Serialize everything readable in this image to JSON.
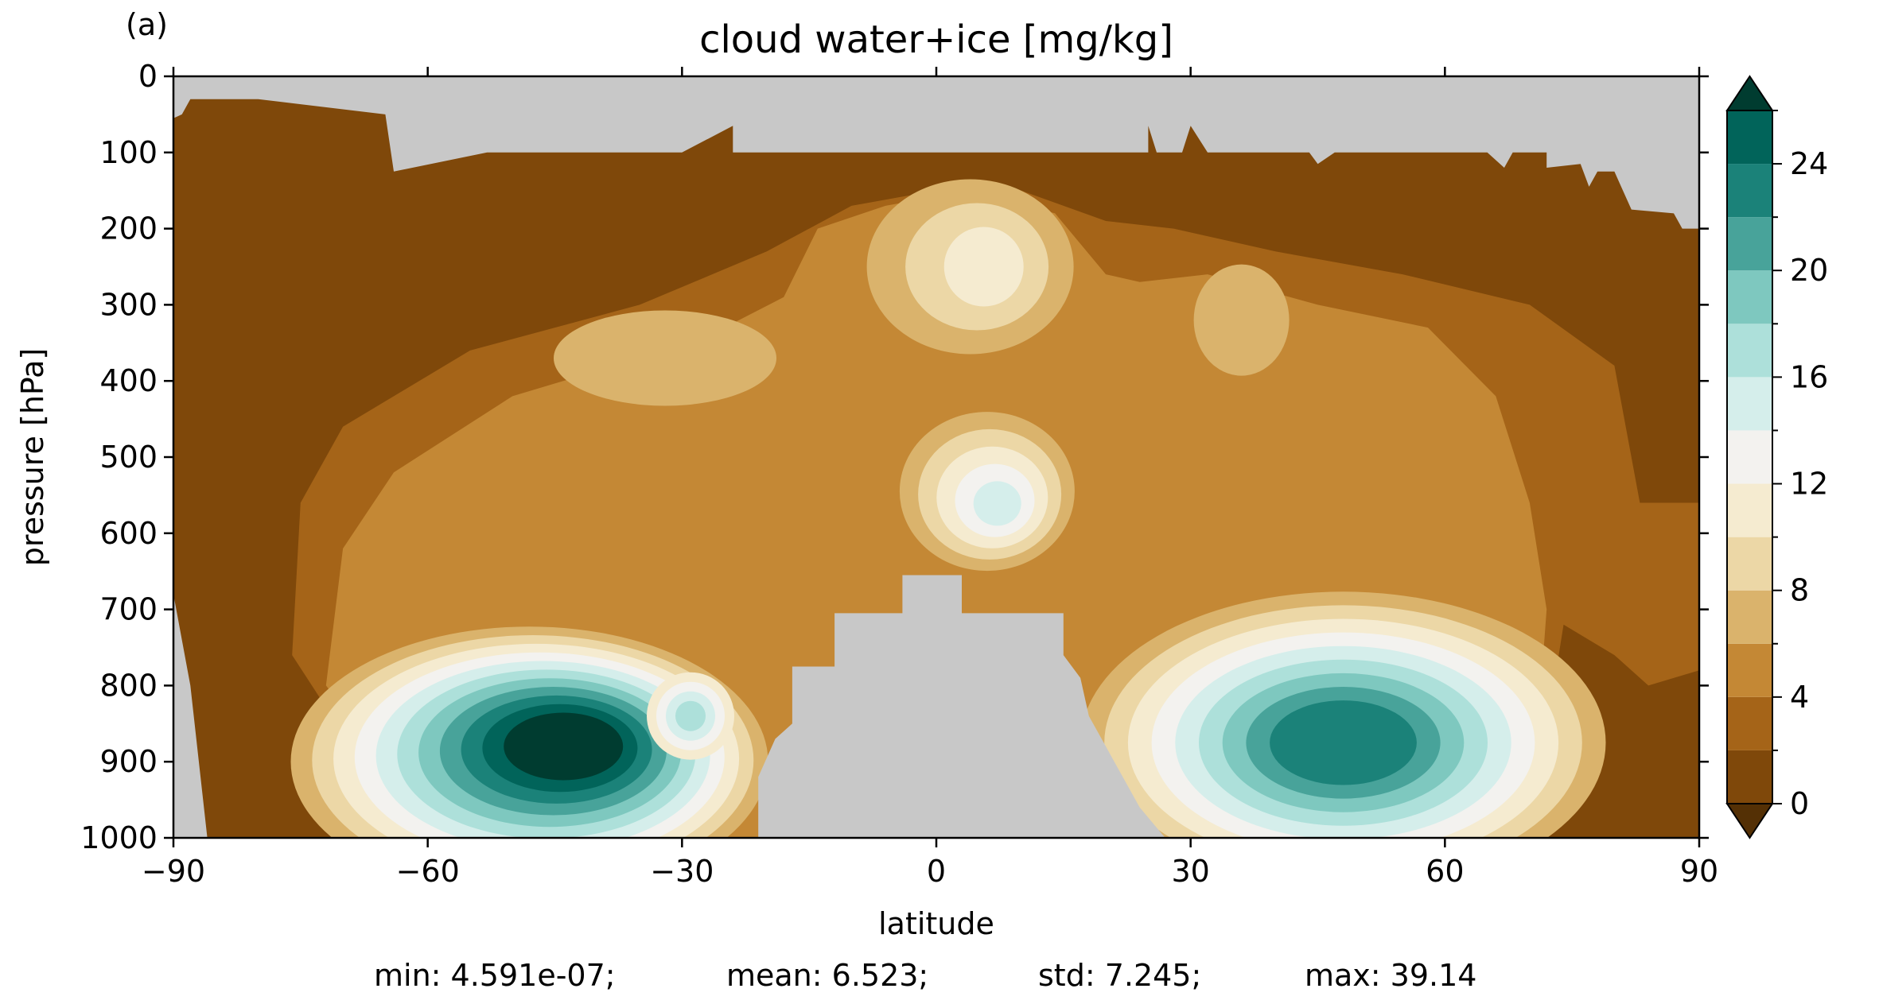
{
  "panel_label": "(a)",
  "chart_data": {
    "type": "contourf",
    "title": "cloud water+ice [mg/kg]",
    "xlabel": "latitude",
    "ylabel": "pressure [hPa]",
    "xlim": [
      -90,
      90
    ],
    "ylim": [
      1000,
      0
    ],
    "x_ticks": [
      -90,
      -60,
      -30,
      0,
      30,
      60,
      90
    ],
    "x_tick_labels": [
      "−90",
      "−60",
      "−30",
      "0",
      "30",
      "60",
      "90"
    ],
    "y_ticks": [
      0,
      100,
      200,
      300,
      400,
      500,
      600,
      700,
      800,
      900,
      1000
    ],
    "y_tick_labels": [
      "0",
      "100",
      "200",
      "300",
      "400",
      "500",
      "600",
      "700",
      "800",
      "900",
      "1000"
    ],
    "colorbar": {
      "levels": [
        0,
        2,
        4,
        6,
        8,
        10,
        12,
        14,
        16,
        18,
        20,
        22,
        24,
        26
      ],
      "tick_values": [
        0,
        4,
        8,
        12,
        16,
        20,
        24
      ],
      "tick_labels": [
        "0",
        "4",
        "8",
        "12",
        "16",
        "20",
        "24"
      ],
      "extend": "both",
      "colormap": "BrBG",
      "colors": [
        "#7f480a",
        "#a56418",
        "#c48835",
        "#dab36c",
        "#ecd7a6",
        "#f5ebd0",
        "#f3f2ef",
        "#d5eeeb",
        "#ade0da",
        "#7ec8bf",
        "#48a39a",
        "#1b8279",
        "#01645a"
      ],
      "under_color": "#543005",
      "over_color": "#003c30"
    },
    "masked_color": "#c8c8c8",
    "features": [
      {
        "name": "southern hemisphere low-level maximum",
        "lat_center": -48,
        "p_center": 910,
        "peak_level": 26
      },
      {
        "name": "southern secondary maximum",
        "lat_center": -29,
        "p_center": 840,
        "peak_level": 18
      },
      {
        "name": "northern hemisphere low-level maximum",
        "lat_center": 48,
        "p_center": 870,
        "peak_level": 22
      },
      {
        "name": "tropical upper maximum",
        "lat_center": 6,
        "p_center": 240,
        "peak_level": 10
      },
      {
        "name": "tropical mid-level maximum",
        "lat_center": 7,
        "p_center": 550,
        "peak_level": 14
      },
      {
        "name": "southern upper maximum",
        "lat_center": -30,
        "p_center": 360,
        "peak_level": 8
      },
      {
        "name": "northern upper maximum",
        "lat_center": 36,
        "p_center": 330,
        "peak_level": 8
      }
    ],
    "topography_mask_outline": [
      [
        -90,
        1000
      ],
      [
        -21,
        1000
      ],
      [
        -21,
        920
      ],
      [
        -19,
        870
      ],
      [
        -17,
        850
      ],
      [
        -17,
        775
      ],
      [
        -12,
        775
      ],
      [
        -12,
        705
      ],
      [
        -8,
        705
      ],
      [
        -8,
        705
      ],
      [
        -4,
        705
      ],
      [
        -4,
        655
      ],
      [
        3,
        655
      ],
      [
        3,
        705
      ],
      [
        15,
        705
      ],
      [
        15,
        760
      ],
      [
        17,
        790
      ],
      [
        18,
        840
      ],
      [
        20,
        880
      ],
      [
        22,
        920
      ],
      [
        24,
        960
      ],
      [
        27,
        1000
      ],
      [
        90,
        1000
      ]
    ],
    "stratosphere_mask_outline": [
      [
        -90,
        0
      ],
      [
        90,
        0
      ],
      [
        90,
        200
      ],
      [
        88,
        200
      ],
      [
        87,
        180
      ],
      [
        82,
        175
      ],
      [
        81,
        150
      ],
      [
        80,
        125
      ],
      [
        78,
        125
      ],
      [
        77,
        145
      ],
      [
        76,
        115
      ],
      [
        72,
        120
      ],
      [
        72,
        100
      ],
      [
        68,
        100
      ],
      [
        67,
        120
      ],
      [
        65,
        100
      ],
      [
        47,
        100
      ],
      [
        45,
        115
      ],
      [
        44,
        100
      ],
      [
        32,
        100
      ],
      [
        30,
        65
      ],
      [
        29,
        100
      ],
      [
        26,
        100
      ],
      [
        25,
        65
      ],
      [
        25,
        100
      ],
      [
        -24,
        100
      ],
      [
        -24,
        65
      ],
      [
        -30,
        100
      ],
      [
        -53,
        100
      ],
      [
        -64,
        125
      ],
      [
        -65,
        50
      ],
      [
        -80,
        30
      ],
      [
        -88,
        30
      ],
      [
        -89,
        50
      ],
      [
        -90,
        55
      ]
    ],
    "polar_low_mask_south": [
      [
        -90,
        655
      ],
      [
        -90,
        1000
      ],
      [
        -86,
        1000
      ],
      [
        -88,
        800
      ],
      [
        -90,
        680
      ]
    ]
  },
  "stats": {
    "min": "min: 4.591e-07;",
    "mean": "mean: 6.523;",
    "std": "std: 7.245;",
    "max": "max: 39.14"
  }
}
